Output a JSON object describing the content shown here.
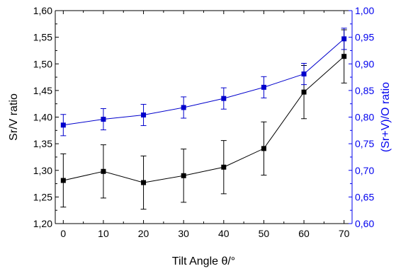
{
  "chart_data": {
    "type": "line",
    "xlabel": "Tilt Angle θ/°",
    "ylabel": "Sr/V ratio",
    "y2label": "(Sr+V)/O ratio",
    "x": [
      0,
      10,
      20,
      30,
      40,
      50,
      60,
      70
    ],
    "xlim": [
      -2,
      72
    ],
    "ylim": [
      1.2,
      1.6
    ],
    "y2lim": [
      0.6,
      1.0
    ],
    "xticks": [
      "0",
      "10",
      "20",
      "30",
      "40",
      "50",
      "60",
      "70"
    ],
    "yticks": [
      "1,20",
      "1,25",
      "1,30",
      "1,35",
      "1,40",
      "1,45",
      "1,50",
      "1,55",
      "1,60"
    ],
    "y2ticks": [
      "0,60",
      "0,65",
      "0,70",
      "0,75",
      "0,80",
      "0,85",
      "0,90",
      "0,95",
      "1,00"
    ],
    "grid": false,
    "legend": "none",
    "colors": {
      "left_axis": "#000000",
      "right_axis": "#0000ee",
      "series_sr_v": "#000000",
      "series_srv_o": "#0000cc"
    },
    "series": [
      {
        "axis": "left",
        "values": [
          1.281,
          1.298,
          1.277,
          1.29,
          1.306,
          1.341,
          1.447,
          1.514
        ],
        "errors": [
          0.05,
          0.05,
          0.05,
          0.05,
          0.05,
          0.05,
          0.05,
          0.05
        ]
      },
      {
        "axis": "right",
        "values": [
          0.785,
          0.796,
          0.804,
          0.818,
          0.835,
          0.856,
          0.881,
          0.947
        ],
        "errors": [
          0.02,
          0.02,
          0.02,
          0.02,
          0.02,
          0.02,
          0.02,
          0.02
        ]
      }
    ]
  }
}
